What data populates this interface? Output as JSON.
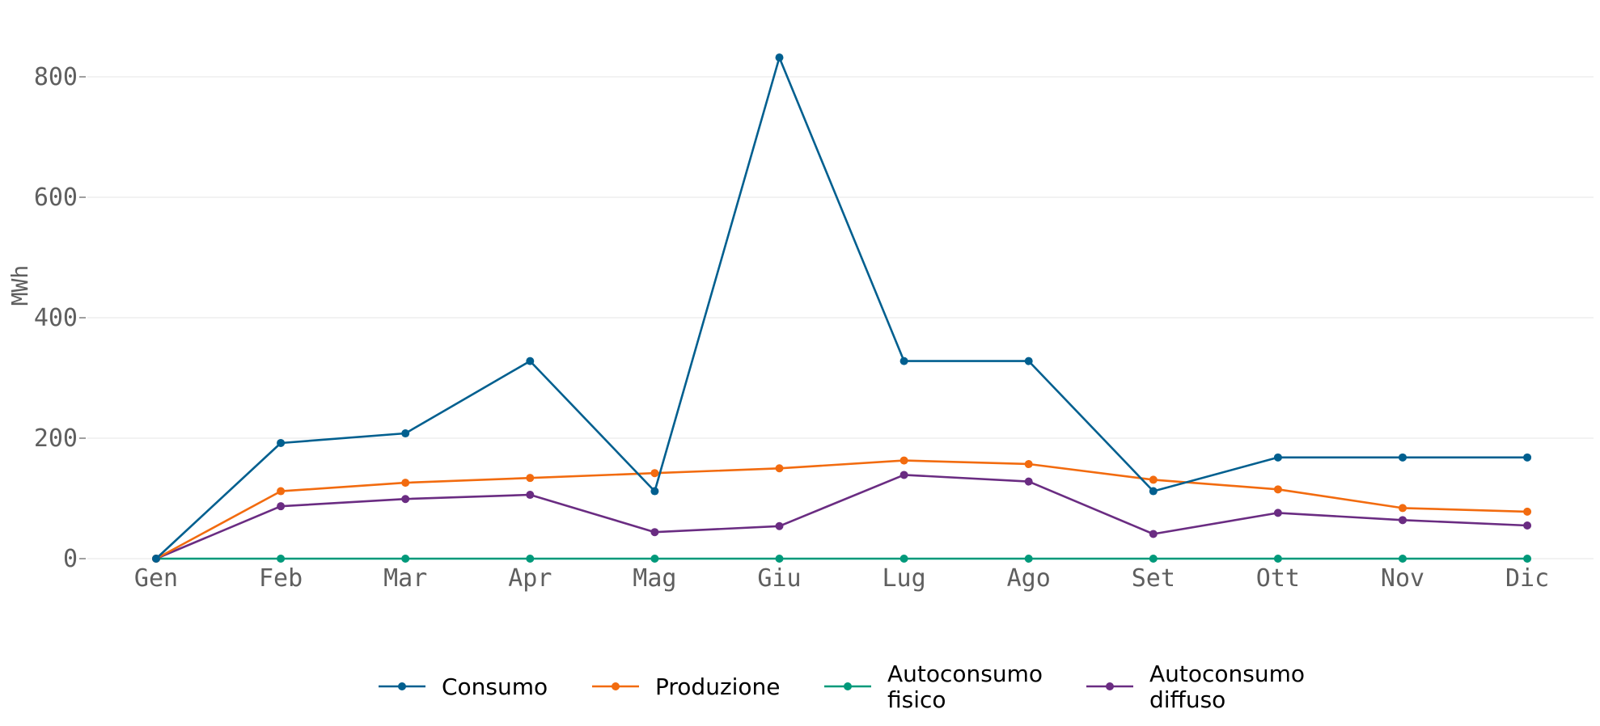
{
  "chart_data": {
    "type": "line",
    "title": "",
    "xlabel": "",
    "ylabel": "MWh",
    "categories": [
      "Gen",
      "Feb",
      "Mar",
      "Apr",
      "Mag",
      "Giu",
      "Lug",
      "Ago",
      "Set",
      "Ott",
      "Nov",
      "Dic"
    ],
    "ylim": [
      0,
      880
    ],
    "yticks": [
      0,
      200,
      400,
      600,
      800
    ],
    "grid": "horizontal",
    "legend_position": "bottom",
    "series": [
      {
        "name": "Consumo",
        "color": "#005f8f",
        "values": [
          0,
          192,
          208,
          328,
          112,
          832,
          328,
          328,
          112,
          168,
          168,
          168
        ]
      },
      {
        "name": "Produzione",
        "color": "#f26b0f",
        "values": [
          0,
          112,
          126,
          134,
          142,
          150,
          163,
          157,
          131,
          115,
          84,
          78
        ]
      },
      {
        "name": "Autoconsumo fisico",
        "legend_lines": [
          "Autoconsumo",
          "fisico"
        ],
        "color": "#00997a",
        "values": [
          0,
          0,
          0,
          0,
          0,
          0,
          0,
          0,
          0,
          0,
          0,
          0
        ]
      },
      {
        "name": "Autoconsumo diffuso",
        "legend_lines": [
          "Autoconsumo",
          "diffuso"
        ],
        "color": "#6a2c82",
        "values": [
          0,
          87,
          99,
          106,
          44,
          54,
          139,
          128,
          41,
          76,
          64,
          55
        ]
      }
    ]
  }
}
